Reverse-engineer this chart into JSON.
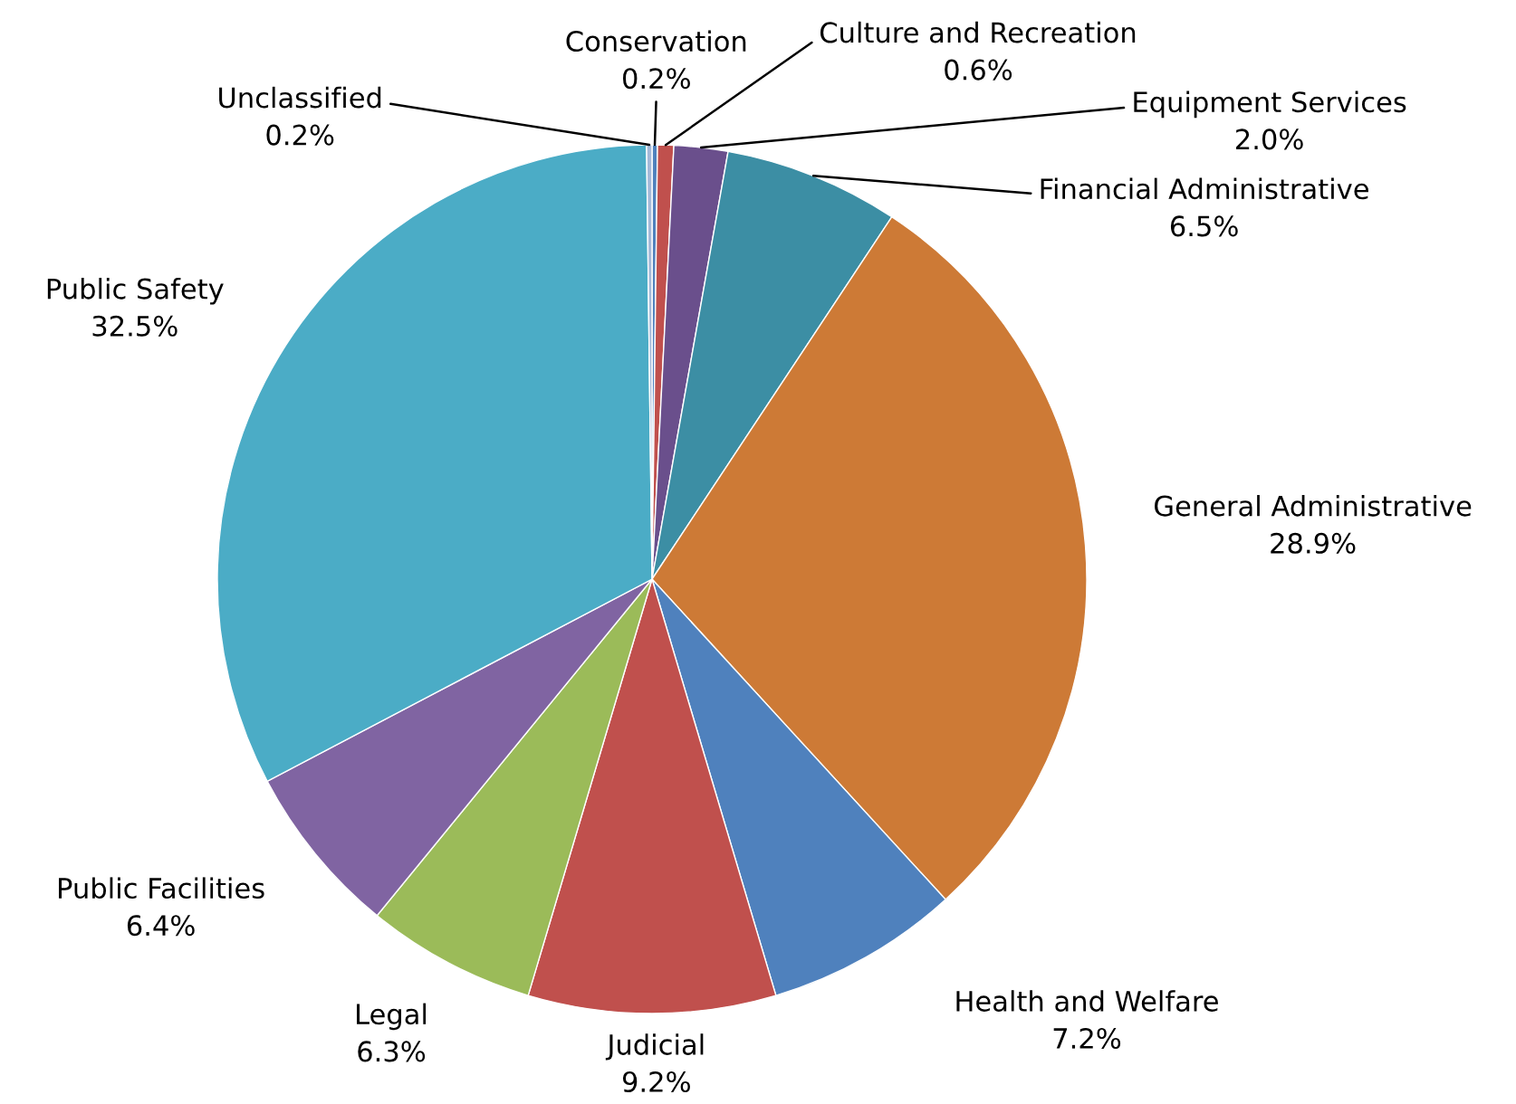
{
  "chart_data": {
    "type": "pie",
    "categories": [
      "Conservation",
      "Culture and Recreation",
      "Equipment Services",
      "Financial Administrative",
      "General Administrative",
      "Health and Welfare",
      "Judicial",
      "Legal",
      "Public Facilities",
      "Public Safety",
      "Unclassified"
    ],
    "values": [
      0.2,
      0.6,
      2.0,
      6.5,
      28.9,
      7.2,
      9.2,
      6.3,
      6.4,
      32.5,
      0.2
    ],
    "colors": [
      "#4f81bd",
      "#c0504d",
      "#6a4f8c",
      "#3c8ea4",
      "#cd7a36",
      "#4f81bd",
      "#c0504d",
      "#9bbb59",
      "#8064a2",
      "#4bacc6",
      "#a5b9d8"
    ],
    "value_labels": [
      "0.2%",
      "0.6%",
      "2.0%",
      "6.5%",
      "28.9%",
      "7.2%",
      "9.2%",
      "6.3%",
      "6.4%",
      "32.5%",
      "0.2%"
    ]
  }
}
